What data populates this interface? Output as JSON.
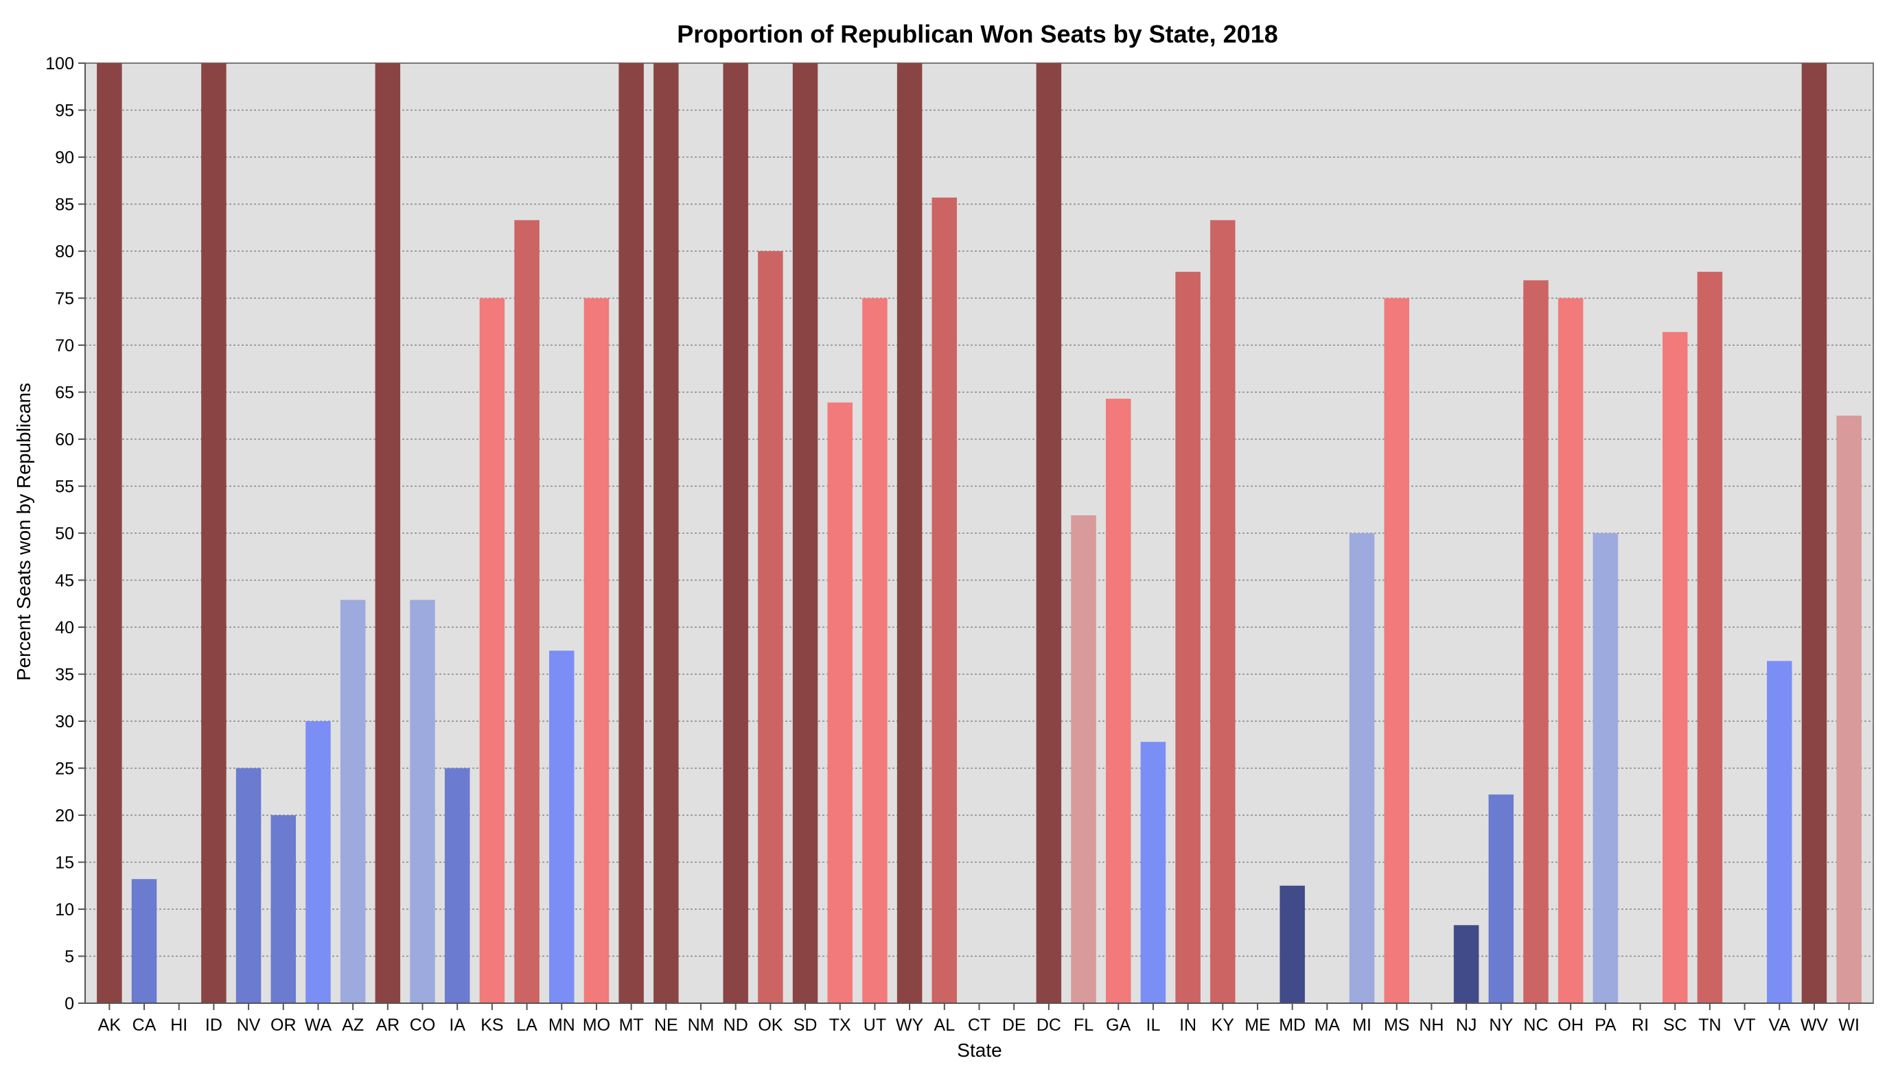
{
  "chart_data": {
    "type": "bar",
    "title": "Proportion of Republican Won Seats by State, 2018",
    "xlabel": "State",
    "ylabel": "Percent Seats won by Republicans",
    "ylim": [
      0,
      100
    ],
    "yticks": [
      0,
      5,
      10,
      15,
      20,
      25,
      30,
      35,
      40,
      45,
      50,
      55,
      60,
      65,
      70,
      75,
      80,
      85,
      90,
      95,
      100
    ],
    "grid": true,
    "legend": "none",
    "categories": [
      "AK",
      "CA",
      "HI",
      "ID",
      "NV",
      "OR",
      "WA",
      "AZ",
      "AR",
      "CO",
      "IA",
      "KS",
      "LA",
      "MN",
      "MO",
      "MT",
      "NE",
      "NM",
      "ND",
      "OK",
      "SD",
      "TX",
      "UT",
      "WY",
      "AL",
      "CT",
      "DE",
      "DC",
      "FL",
      "GA",
      "IL",
      "IN",
      "KY",
      "ME",
      "MD",
      "MA",
      "MI",
      "MS",
      "NH",
      "NJ",
      "NY",
      "NC",
      "OH",
      "PA",
      "RI",
      "SC",
      "TN",
      "VT",
      "VA",
      "WV",
      "WI"
    ],
    "values": [
      100,
      13.2,
      0,
      100,
      25,
      20,
      30,
      42.9,
      100,
      42.9,
      25,
      75,
      83.3,
      37.5,
      75,
      100,
      100,
      0,
      100,
      80,
      100,
      63.9,
      75,
      100,
      85.7,
      0,
      0,
      100,
      51.9,
      64.3,
      27.8,
      77.8,
      83.3,
      0,
      12.5,
      0,
      50,
      75,
      0,
      8.3,
      22.2,
      76.9,
      75,
      50,
      0,
      71.4,
      77.8,
      0,
      36.4,
      100,
      62.5
    ],
    "colors": [
      "#8b4444",
      "#6b7bcf",
      "#cccccc",
      "#8b4444",
      "#6b7bcf",
      "#6b7bcf",
      "#7b8ef5",
      "#9daade",
      "#8b4444",
      "#9daade",
      "#6b7bcf",
      "#f27a7a",
      "#cc6464",
      "#7b8ef5",
      "#f27a7a",
      "#8b4444",
      "#8b4444",
      "#cccccc",
      "#8b4444",
      "#cc6464",
      "#8b4444",
      "#f27a7a",
      "#f27a7a",
      "#8b4444",
      "#cc6464",
      "#cccccc",
      "#cccccc",
      "#8b4444",
      "#d89a9a",
      "#f27a7a",
      "#7b8ef5",
      "#cc6464",
      "#cc6464",
      "#cccccc",
      "#414b8a",
      "#cccccc",
      "#9daade",
      "#f27a7a",
      "#cccccc",
      "#414b8a",
      "#6b7bcf",
      "#cc6464",
      "#f27a7a",
      "#9daade",
      "#cccccc",
      "#f27a7a",
      "#cc6464",
      "#cccccc",
      "#7b8ef5",
      "#8b4444",
      "#d89a9a"
    ],
    "plot_background": "#e0e0e0"
  }
}
